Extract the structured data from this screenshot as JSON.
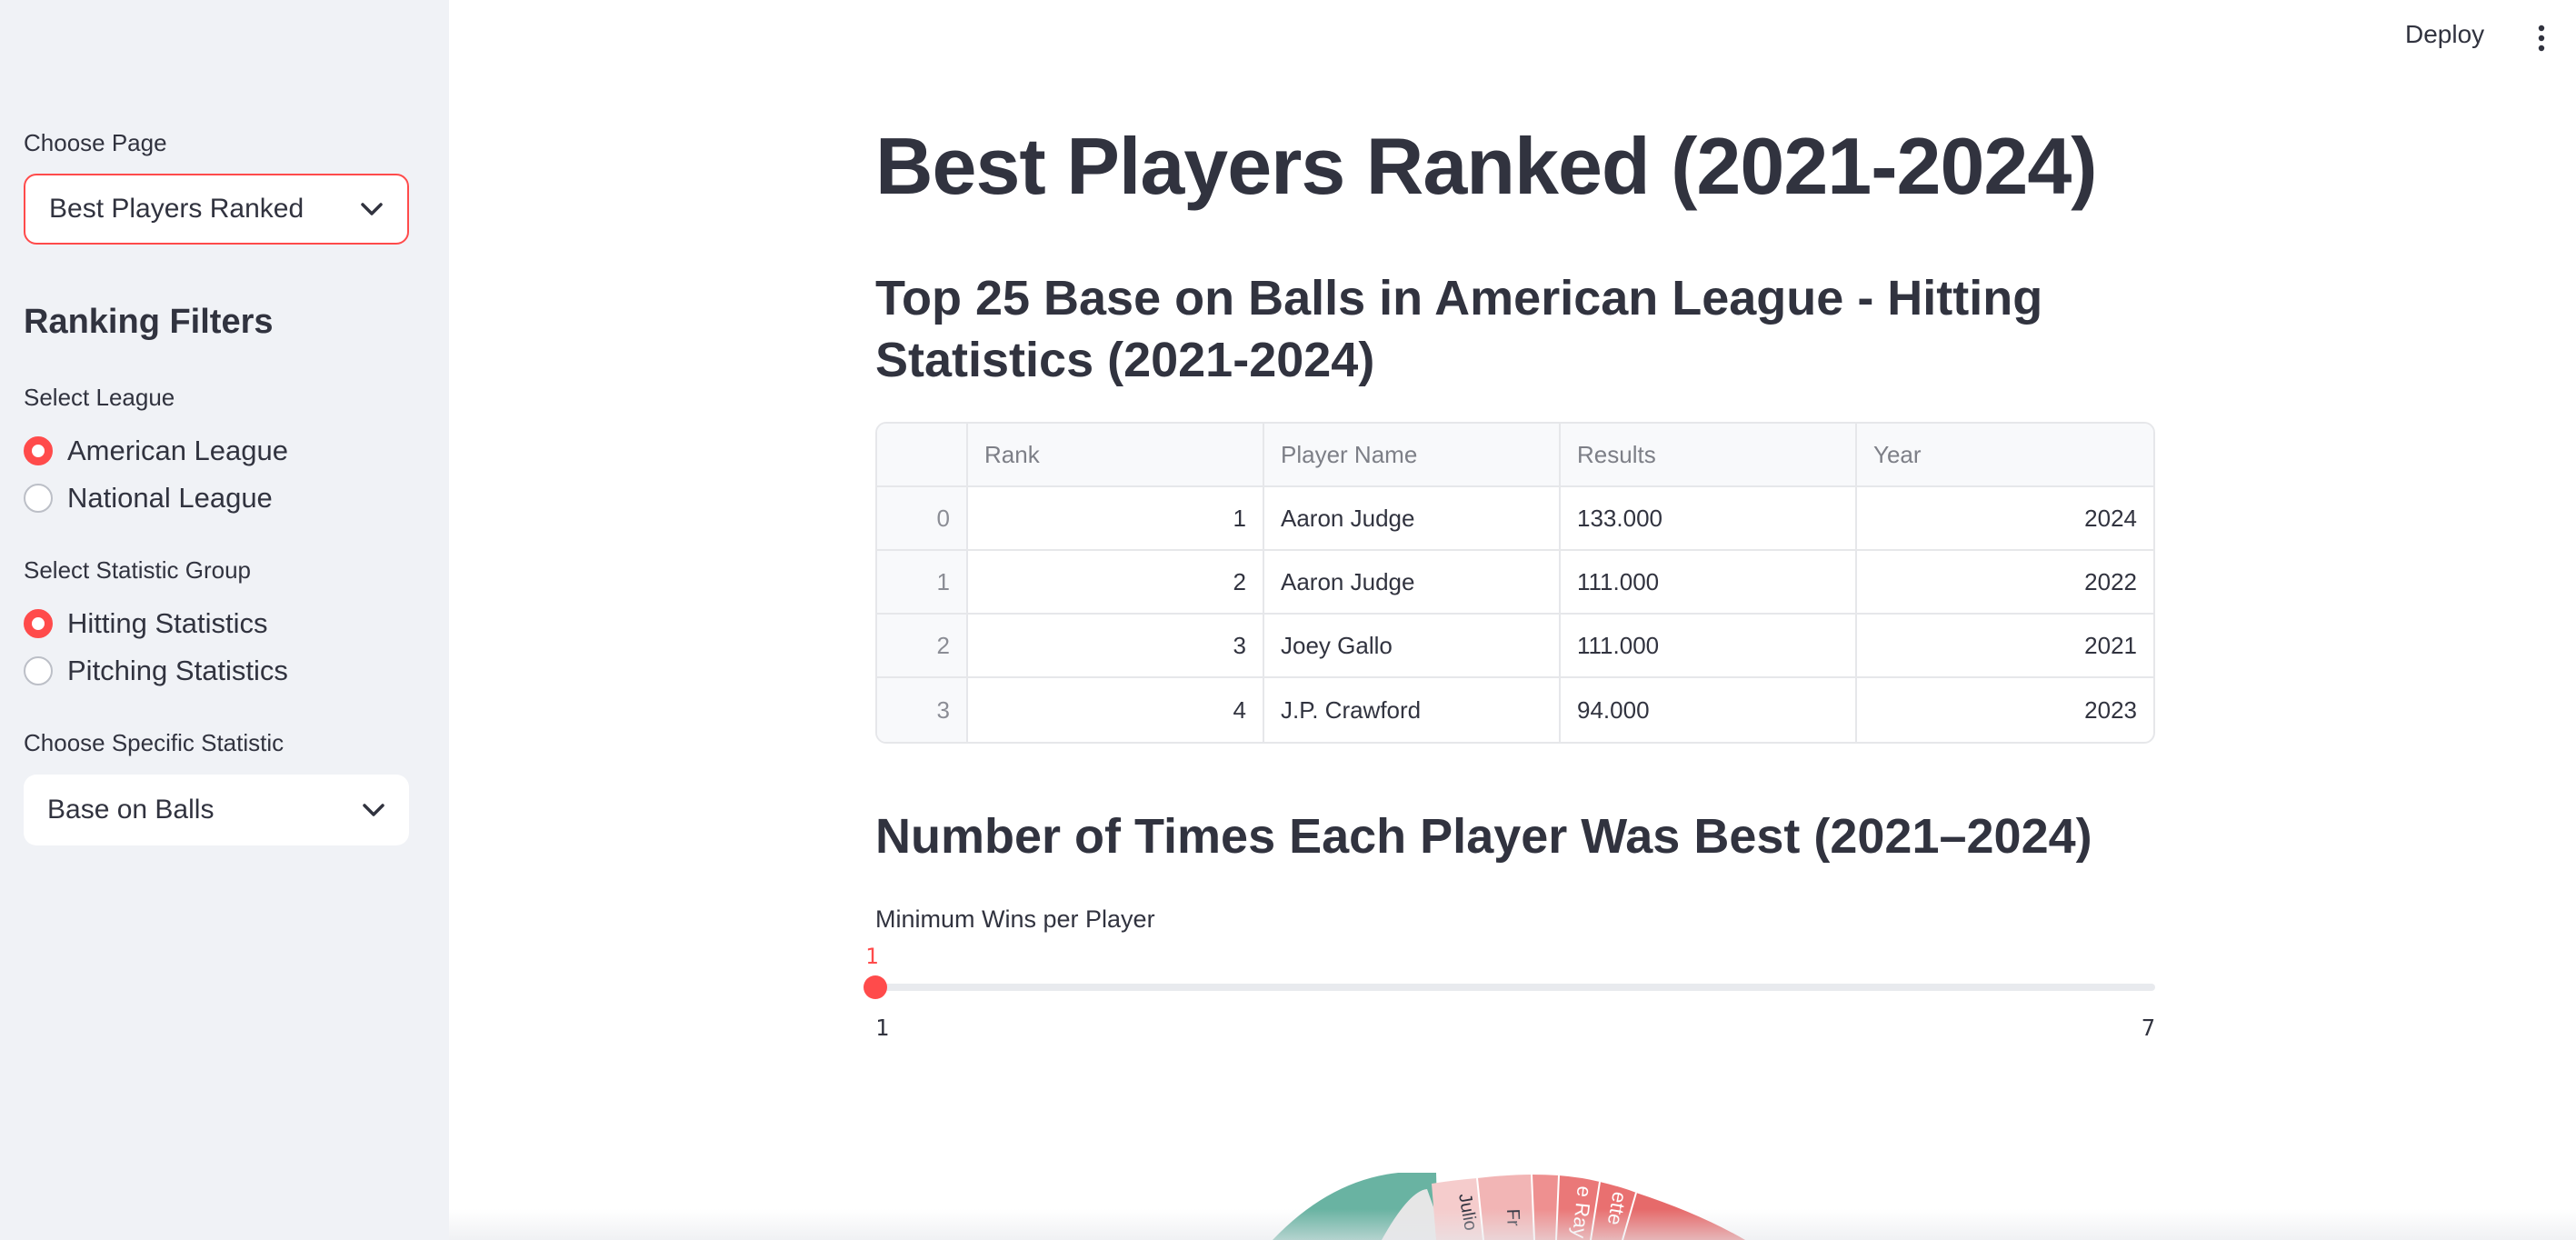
{
  "topbar": {
    "deploy_label": "Deploy",
    "menu_icon": "vertical-dots-icon"
  },
  "sidebar": {
    "choose_page_label": "Choose Page",
    "choose_page_value": "Best Players Ranked",
    "ranking_filters_heading": "Ranking Filters",
    "league_label": "Select League",
    "league_options": [
      {
        "label": "American League",
        "selected": true
      },
      {
        "label": "National League",
        "selected": false
      }
    ],
    "stat_group_label": "Select Statistic Group",
    "stat_group_options": [
      {
        "label": "Hitting Statistics",
        "selected": true
      },
      {
        "label": "Pitching Statistics",
        "selected": false
      }
    ],
    "specific_stat_label": "Choose Specific Statistic",
    "specific_stat_value": "Base on Balls",
    "accent_color": "#ff4b4b"
  },
  "main": {
    "title": "Best Players Ranked (2021-2024)",
    "table_heading": "Top 25 Base on Balls in American League - Hitting Statistics (2021-2024)",
    "table": {
      "columns": [
        "",
        "Rank",
        "Player Name",
        "Results",
        "Year"
      ],
      "rows": [
        [
          "0",
          "1",
          "Aaron Judge",
          "133.000",
          "2024"
        ],
        [
          "1",
          "2",
          "Aaron Judge",
          "111.000",
          "2022"
        ],
        [
          "2",
          "3",
          "Joey Gallo",
          "111.000",
          "2021"
        ],
        [
          "3",
          "4",
          "J.P. Crawford",
          "94.000",
          "2023"
        ]
      ]
    },
    "chart_heading": "Number of Times Each Player Was Best (2021–2024)",
    "slider": {
      "label": "Minimum Wins per Player",
      "value": "1",
      "min": "1",
      "max": "7"
    },
    "sunburst_segment_labels": [
      "Julio",
      "Fr",
      "e Ray",
      "ette"
    ]
  }
}
